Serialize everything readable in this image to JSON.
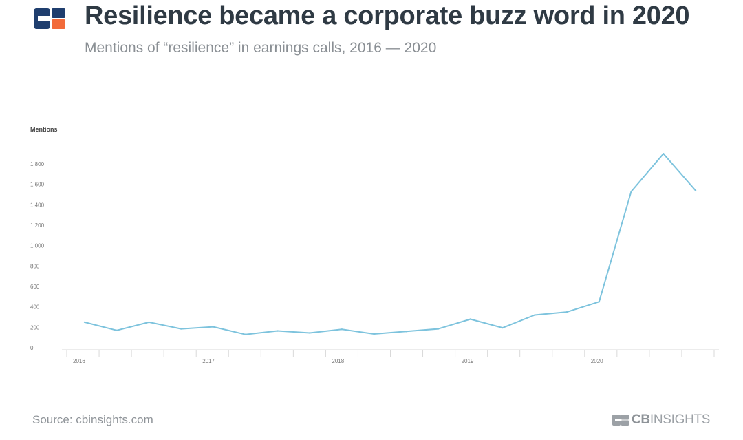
{
  "header": {
    "title": "Resilience became a corporate buzz word in 2020",
    "subtitle": "Mentions of “resilience” in earnings calls, 2016 — 2020"
  },
  "footer": {
    "source": "Source: cbinsights.com",
    "brand_bold": "CB",
    "brand_light": "INSIGHTS"
  },
  "colors": {
    "line": "#7dc3dd",
    "logo_dark": "#1f3e6e",
    "logo_accent": "#f26b3a",
    "axis_text": "#777777",
    "axis_line": "#d9d9d9"
  },
  "chart_data": {
    "type": "line",
    "ylabel": "Mentions",
    "xlabel": "",
    "ylim": [
      0,
      1800
    ],
    "yticks": [
      0,
      200,
      400,
      600,
      800,
      1000,
      1200,
      1400,
      1600,
      1800
    ],
    "ytick_labels": [
      "0",
      "200",
      "400",
      "600",
      "800",
      "1,000",
      "1,200",
      "1,400",
      "1,600",
      "1,800"
    ],
    "year_labels": [
      "2016",
      "2017",
      "2018",
      "2019",
      "2020"
    ],
    "x": [
      "2016 Q1",
      "2016 Q2",
      "2016 Q3",
      "2016 Q4",
      "2017 Q1",
      "2017 Q2",
      "2017 Q3",
      "2017 Q4",
      "2018 Q1",
      "2018 Q2",
      "2018 Q3",
      "2018 Q4",
      "2019 Q1",
      "2019 Q2",
      "2019 Q3",
      "2019 Q4",
      "2020 Q1",
      "2020 Q2",
      "2020 Q3",
      "2020 Q4"
    ],
    "series": [
      {
        "name": "Mentions",
        "values": [
          250,
          170,
          250,
          185,
          205,
          130,
          165,
          145,
          180,
          135,
          160,
          185,
          280,
          195,
          320,
          350,
          450,
          1530,
          1900,
          1540
        ]
      }
    ],
    "grid": false,
    "legend": "none"
  }
}
